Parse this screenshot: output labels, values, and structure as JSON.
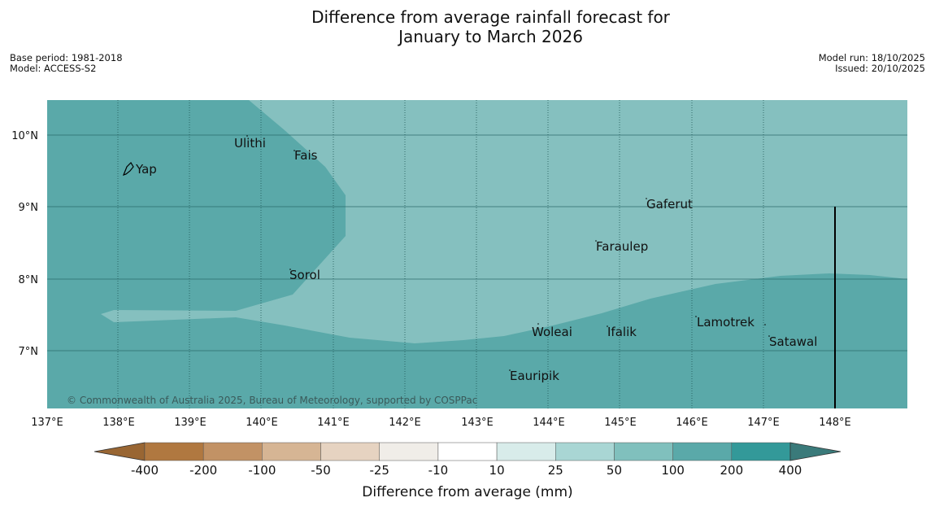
{
  "header": {
    "title_line1": "Difference from average rainfall forecast for",
    "title_line2": "January to March 2026",
    "base_period": "Base period: 1981-2018",
    "model": "Model: ACCESS-S2",
    "model_run": "Model run: 18/10/2025",
    "issued": "Issued: 20/10/2025"
  },
  "map": {
    "lon_ticks": [
      "137°E",
      "138°E",
      "139°E",
      "140°E",
      "141°E",
      "142°E",
      "143°E",
      "144°E",
      "145°E",
      "146°E",
      "147°E",
      "148°E"
    ],
    "lat_ticks": [
      "10°N",
      "9°N",
      "8°N",
      "7°N"
    ],
    "places": [
      {
        "name": "Yap"
      },
      {
        "name": "Ulithi"
      },
      {
        "name": "Fais"
      },
      {
        "name": "Gaferut"
      },
      {
        "name": "Faraulep"
      },
      {
        "name": "Sorol"
      },
      {
        "name": "Woleai"
      },
      {
        "name": "Ifalik"
      },
      {
        "name": "Lamotrek"
      },
      {
        "name": "Satawal"
      },
      {
        "name": "Eauripik"
      }
    ],
    "copyright": "© Commonwealth of Australia 2025, Bureau of Meteorology, supported by COSPPac",
    "colors": {
      "band_100_200": "#5aa9a9",
      "band_50_100": "#85c0bf"
    }
  },
  "legend": {
    "title": "Difference from average (mm)",
    "ticks": [
      "-400",
      "-200",
      "-100",
      "-50",
      "-25",
      "-10",
      "10",
      "25",
      "50",
      "100",
      "200",
      "400"
    ],
    "colors": [
      "#996633",
      "#b07840",
      "#c29265",
      "#d6b594",
      "#e6d3c1",
      "#f0ede8",
      "#ffffff",
      "#d8ecea",
      "#a9d6d4",
      "#80c0bd",
      "#5aa9a9",
      "#339999",
      "#3a7a7a"
    ]
  }
}
